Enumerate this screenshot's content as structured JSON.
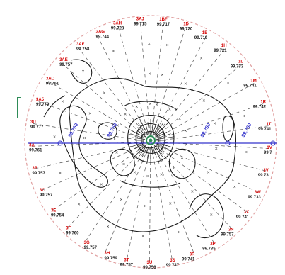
{
  "colors": {
    "station_label": "#d40000",
    "station_value": "#222222",
    "boundary": "#e0a0a0",
    "spoke": "#555555",
    "contour": "#1a1a1a",
    "cross_section": "#3333cc",
    "center_marker": "#2e8b57"
  },
  "stations": [
    {
      "label": "1BF",
      "value": "99.717"
    },
    {
      "label": "1D",
      "value": "99.720"
    },
    {
      "label": "1E",
      "value": "99.719"
    },
    {
      "label": "1H",
      "value": "99.721"
    },
    {
      "label": "1L",
      "value": "99.733"
    },
    {
      "label": "1M",
      "value": "99.741"
    },
    {
      "label": "1R",
      "value": "99.742"
    },
    {
      "label": "1T",
      "value": "99.741"
    },
    {
      "label": "1V",
      "value": "99.7"
    },
    {
      "label": "3V",
      "value": "99.73"
    },
    {
      "label": "3W",
      "value": "99.733"
    },
    {
      "label": "3X",
      "value": "99.741"
    },
    {
      "label": "3N",
      "value": "99.757"
    },
    {
      "label": "3P",
      "value": "99.735"
    },
    {
      "label": "3R",
      "value": "99.741"
    },
    {
      "label": "3S",
      "value": "99.747"
    },
    {
      "label": "3U",
      "value": "99.756"
    },
    {
      "label": "3T",
      "value": "99.757"
    },
    {
      "label": "3H",
      "value": "99.759"
    },
    {
      "label": "3G",
      "value": "99.757"
    },
    {
      "label": "3F",
      "value": "99.760"
    },
    {
      "label": "3E",
      "value": "99.754"
    },
    {
      "label": "3C",
      "value": "99.757"
    },
    {
      "label": "3B",
      "value": "99.757"
    },
    {
      "label": "3A",
      "value": "99.761"
    },
    {
      "label": "3U",
      "value": "99.777"
    },
    {
      "label": "3A5",
      "value": "99.779"
    },
    {
      "label": "3AC",
      "value": "99.761"
    },
    {
      "label": "3AE",
      "value": "99.757"
    },
    {
      "label": "3AF",
      "value": "99.758"
    },
    {
      "label": "3AG",
      "value": "99.744"
    },
    {
      "label": "3AH",
      "value": "99.728"
    },
    {
      "label": "3AJ",
      "value": "99.715"
    }
  ],
  "cross_section_labels": [
    "99.760",
    "99.750",
    "99.750",
    "99.760"
  ]
}
